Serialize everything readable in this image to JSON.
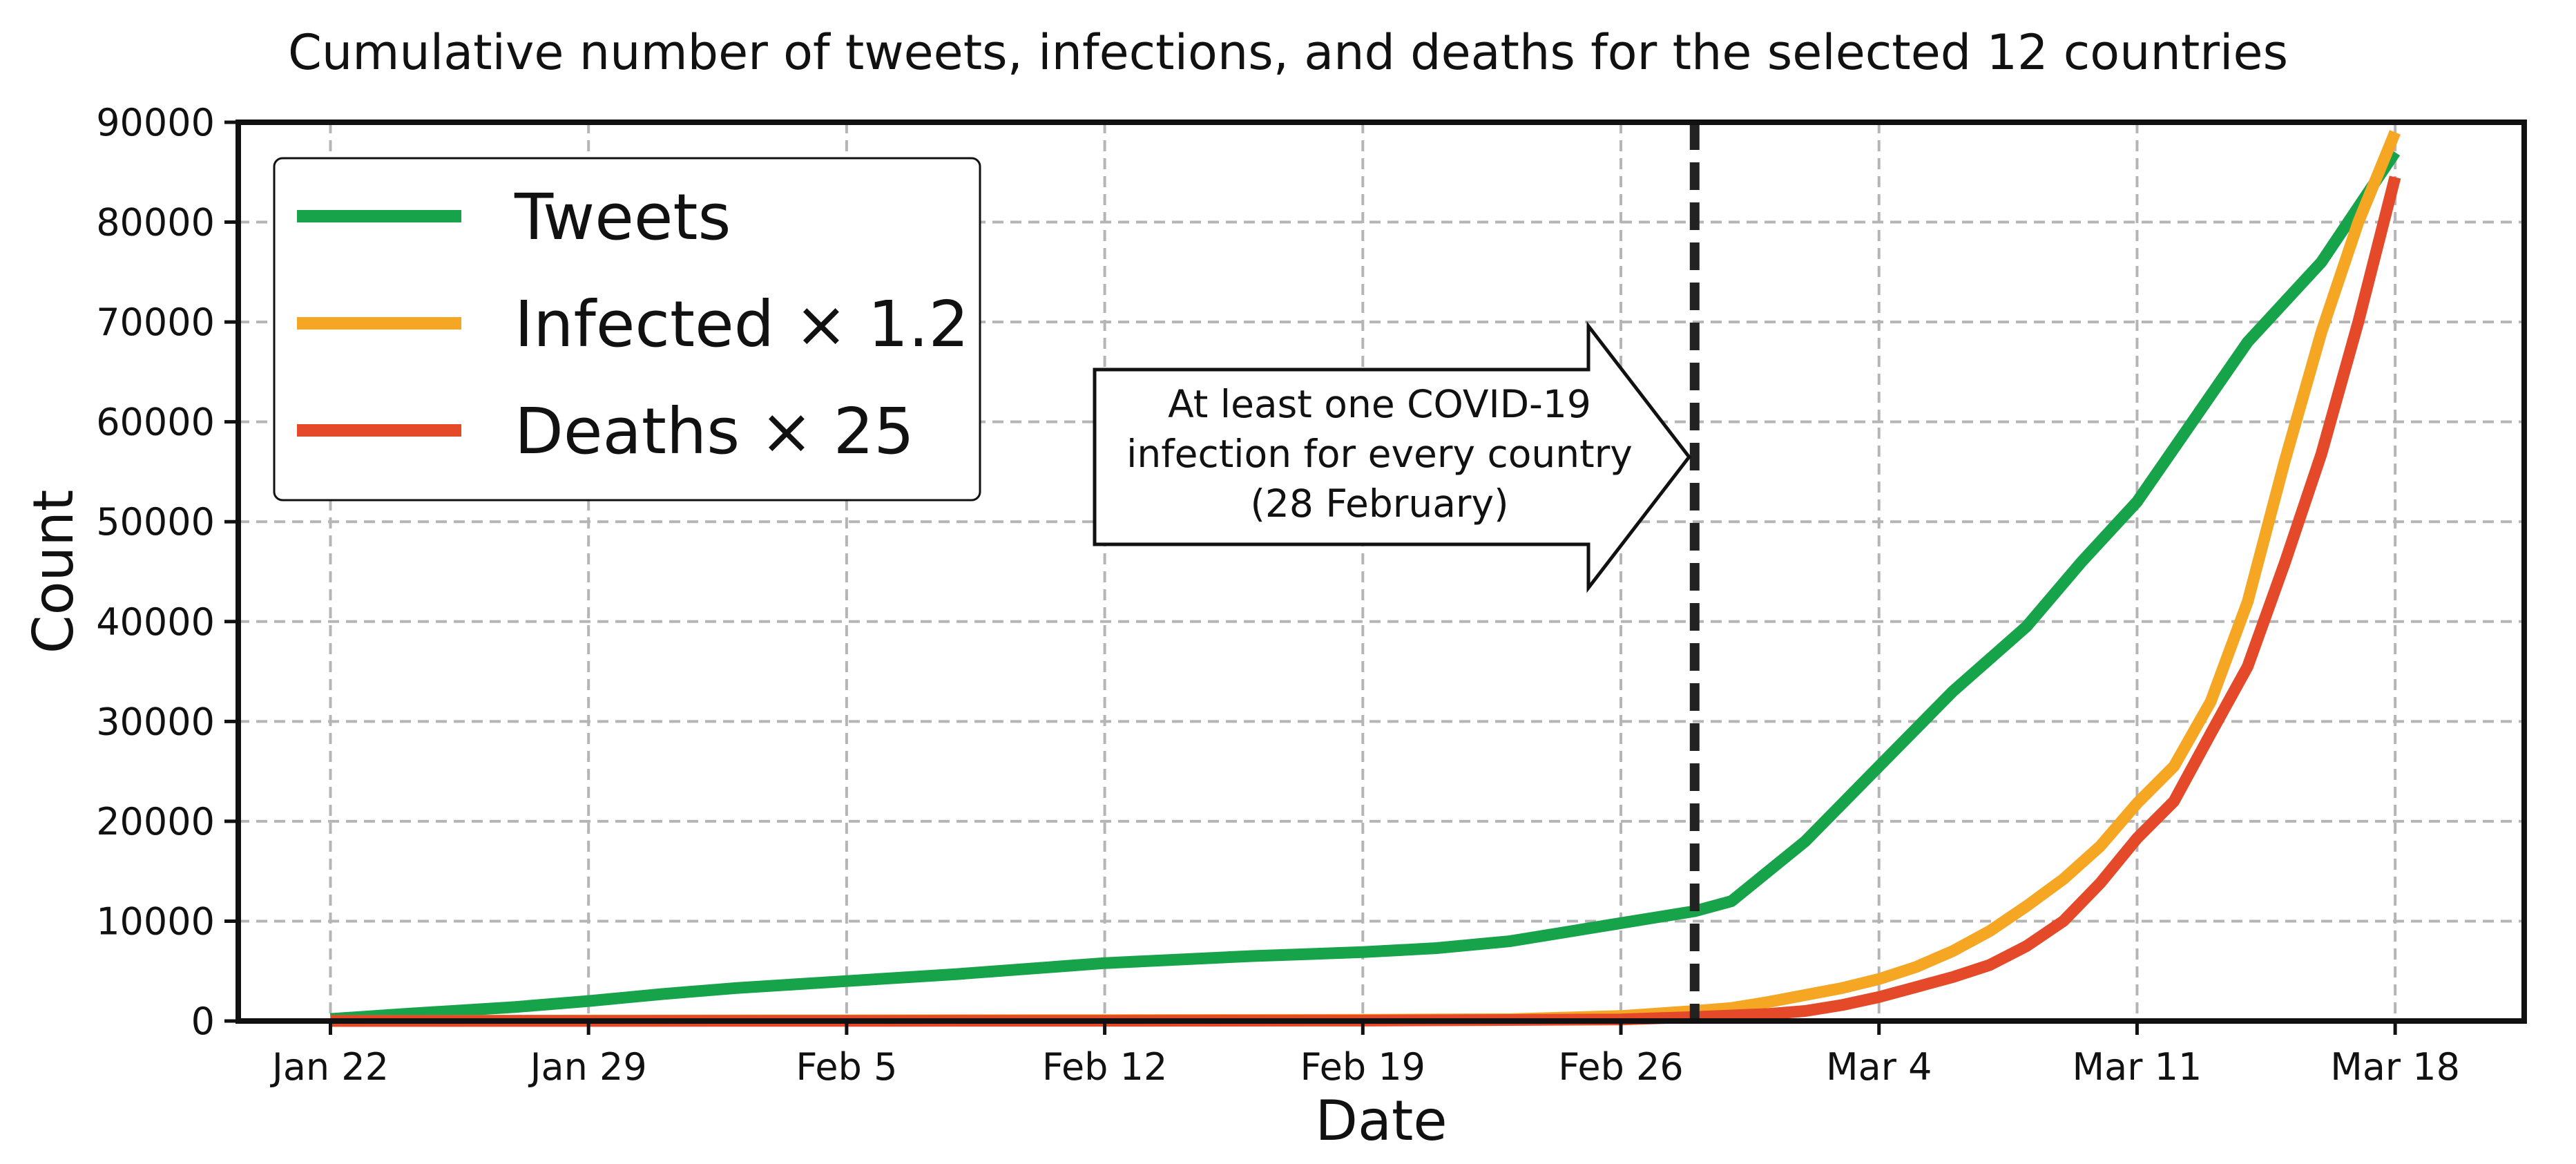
{
  "chart_data": {
    "type": "line",
    "title": "Cumulative number of tweets, infections, and deaths for the selected 12 countries",
    "xlabel": "Date",
    "ylabel": "Count",
    "ylim": [
      0,
      90000
    ],
    "xlim": [
      -2.5,
      59.5
    ],
    "grid": true,
    "legend_position": "top-left",
    "x_ticks": [
      {
        "day": 0,
        "label": "Jan 22"
      },
      {
        "day": 7,
        "label": "Jan 29"
      },
      {
        "day": 14,
        "label": "Feb 5"
      },
      {
        "day": 21,
        "label": "Feb 12"
      },
      {
        "day": 28,
        "label": "Feb 19"
      },
      {
        "day": 35,
        "label": "Feb 26"
      },
      {
        "day": 42,
        "label": "Mar 4"
      },
      {
        "day": 49,
        "label": "Mar 11"
      },
      {
        "day": 56,
        "label": "Mar 18"
      }
    ],
    "y_ticks": [
      0,
      10000,
      20000,
      30000,
      40000,
      50000,
      60000,
      70000,
      80000,
      90000
    ],
    "y_tick_labels": [
      "0",
      "10000",
      "20000",
      "30000",
      "40000",
      "50000",
      "60000",
      "70000",
      "80000",
      "90000"
    ],
    "series": [
      {
        "name": "Tweets",
        "legend_label": "Tweets",
        "color": "#16a34a",
        "points": [
          [
            0,
            200
          ],
          [
            2,
            700
          ],
          [
            5,
            1400
          ],
          [
            7,
            2000
          ],
          [
            9,
            2700
          ],
          [
            11,
            3300
          ],
          [
            14,
            4000
          ],
          [
            17,
            4700
          ],
          [
            21,
            5800
          ],
          [
            25,
            6500
          ],
          [
            28,
            6900
          ],
          [
            30,
            7300
          ],
          [
            32,
            8000
          ],
          [
            35,
            9800
          ],
          [
            37,
            11000
          ],
          [
            38,
            12000
          ],
          [
            40,
            18000
          ],
          [
            42,
            25500
          ],
          [
            44,
            33000
          ],
          [
            46,
            39500
          ],
          [
            47.5,
            46000
          ],
          [
            49,
            52000
          ],
          [
            50.5,
            60000
          ],
          [
            52,
            68000
          ],
          [
            54,
            76000
          ],
          [
            56,
            87000
          ]
        ]
      },
      {
        "name": "Infected × 1.2",
        "legend_label": "Infected × 1.2",
        "color": "#f5a623",
        "points": [
          [
            0,
            10
          ],
          [
            7,
            40
          ],
          [
            14,
            60
          ],
          [
            21,
            90
          ],
          [
            28,
            120
          ],
          [
            32,
            180
          ],
          [
            35,
            500
          ],
          [
            37,
            1000
          ],
          [
            38,
            1300
          ],
          [
            39,
            1900
          ],
          [
            40,
            2600
          ],
          [
            41,
            3300
          ],
          [
            42,
            4200
          ],
          [
            43,
            5400
          ],
          [
            44,
            7000
          ],
          [
            45,
            9000
          ],
          [
            46,
            11500
          ],
          [
            47,
            14200
          ],
          [
            48,
            17500
          ],
          [
            49,
            21800
          ],
          [
            50,
            25500
          ],
          [
            51,
            32000
          ],
          [
            52,
            42000
          ],
          [
            53,
            56000
          ],
          [
            54,
            69000
          ],
          [
            55,
            80000
          ],
          [
            56,
            89000
          ]
        ]
      },
      {
        "name": "Deaths × 25",
        "legend_label": "Deaths × 25",
        "color": "#e4492a",
        "points": [
          [
            0,
            5
          ],
          [
            7,
            10
          ],
          [
            14,
            20
          ],
          [
            21,
            30
          ],
          [
            28,
            40
          ],
          [
            35,
            150
          ],
          [
            37,
            400
          ],
          [
            39,
            700
          ],
          [
            40,
            1000
          ],
          [
            41,
            1600
          ],
          [
            42,
            2400
          ],
          [
            43,
            3400
          ],
          [
            44,
            4400
          ],
          [
            45,
            5600
          ],
          [
            46,
            7500
          ],
          [
            47,
            10000
          ],
          [
            48,
            13800
          ],
          [
            49,
            18300
          ],
          [
            50,
            22000
          ],
          [
            51,
            28800
          ],
          [
            52,
            35500
          ],
          [
            53,
            45800
          ],
          [
            54,
            56800
          ],
          [
            55,
            70000
          ],
          [
            56,
            84500
          ]
        ]
      }
    ],
    "vertical_marker": {
      "day": 37,
      "style": "dashed",
      "color": "#222222"
    },
    "annotation": {
      "lines": [
        "At least one COVID-19",
        "infection for every country",
        "(28 February)"
      ],
      "points_to": "vertical-marker"
    }
  }
}
